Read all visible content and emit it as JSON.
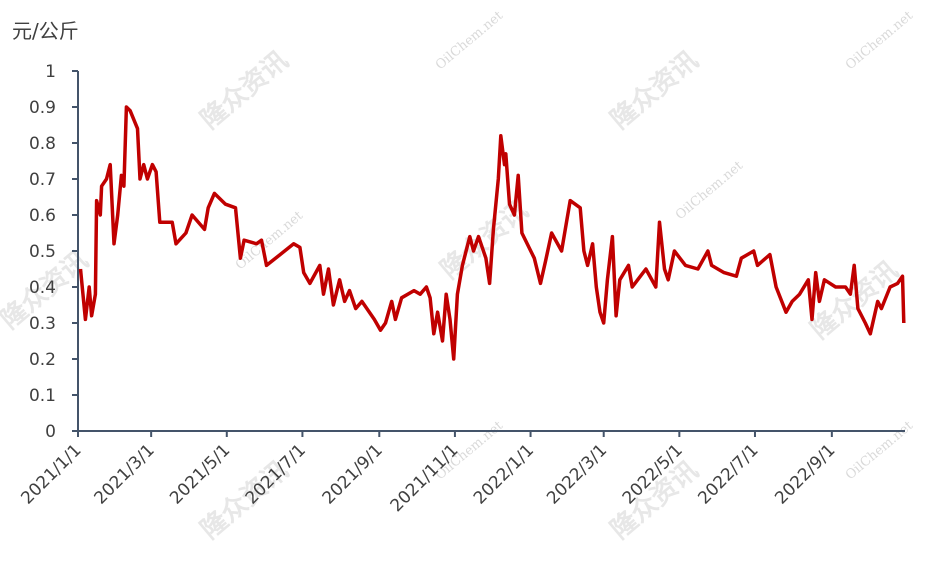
{
  "chart_data": {
    "type": "line",
    "y_label": "元/公斤",
    "watermarks": [
      "隆众资讯",
      "OilChem.net"
    ],
    "ylim": [
      0,
      1
    ],
    "yticks": [
      0,
      0.1,
      0.2,
      0.3,
      0.4,
      0.5,
      0.6,
      0.7,
      0.8,
      0.9,
      1
    ],
    "xlim": [
      "2021/1/1",
      "2022/10/30"
    ],
    "xticks": [
      "2021/1/1",
      "2021/3/1",
      "2021/5/1",
      "2021/7/1",
      "2021/9/1",
      "2021/11/1",
      "2022/1/1",
      "2022/3/1",
      "2022/5/1",
      "2022/7/1",
      "2022/9/1"
    ],
    "x": [
      "2021/1/3",
      "2021/1/7",
      "2021/1/10",
      "2021/1/12",
      "2021/1/15",
      "2021/1/16",
      "2021/1/19",
      "2021/1/20",
      "2021/1/24",
      "2021/1/27",
      "2021/1/30",
      "2021/2/2",
      "2021/2/5",
      "2021/2/7",
      "2021/2/9",
      "2021/2/12",
      "2021/2/18",
      "2021/2/20",
      "2021/2/23",
      "2021/2/26",
      "2021/3/2",
      "2021/3/5",
      "2021/3/8",
      "2021/3/18",
      "2021/3/21",
      "2021/3/29",
      "2021/4/3",
      "2021/4/13",
      "2021/4/16",
      "2021/4/21",
      "2021/4/30",
      "2021/5/8",
      "2021/5/12",
      "2021/5/15",
      "2021/5/25",
      "2021/5/29",
      "2021/6/2",
      "2021/6/13",
      "2021/6/24",
      "2021/6/29",
      "2021/7/2",
      "2021/7/7",
      "2021/7/15",
      "2021/7/18",
      "2021/7/22",
      "2021/7/26",
      "2021/7/31",
      "2021/8/4",
      "2021/8/8",
      "2021/8/13",
      "2021/8/18",
      "2021/8/28",
      "2021/9/2",
      "2021/9/6",
      "2021/9/11",
      "2021/9/14",
      "2021/9/19",
      "2021/9/29",
      "2021/10/4",
      "2021/10/9",
      "2021/10/12",
      "2021/10/15",
      "2021/10/18",
      "2021/10/22",
      "2021/10/25",
      "2021/10/28",
      "2021/10/31",
      "2021/11/3",
      "2021/11/7",
      "2021/11/13",
      "2021/11/16",
      "2021/11/20",
      "2021/11/26",
      "2021/11/29",
      "2021/12/2",
      "2021/12/6",
      "2021/12/8",
      "2021/12/11",
      "2021/12/12",
      "2021/12/15",
      "2021/12/19",
      "2021/12/22",
      "2021/12/25",
      "2022/1/4",
      "2022/1/9",
      "2022/1/13",
      "2022/1/18",
      "2022/1/26",
      "2022/1/30",
      "2022/2/2",
      "2022/2/10",
      "2022/2/13",
      "2022/2/16",
      "2022/2/20",
      "2022/2/23",
      "2022/2/26",
      "2022/3/1",
      "2022/3/4",
      "2022/3/8",
      "2022/3/11",
      "2022/3/14",
      "2022/3/21",
      "2022/3/24",
      "2022/4/4",
      "2022/4/12",
      "2022/4/15",
      "2022/4/19",
      "2022/4/22",
      "2022/4/27",
      "2022/5/6",
      "2022/5/16",
      "2022/5/24",
      "2022/5/27",
      "2022/6/6",
      "2022/6/16",
      "2022/6/20",
      "2022/6/30",
      "2022/7/3",
      "2022/7/13",
      "2022/7/18",
      "2022/7/26",
      "2022/7/31",
      "2022/8/6",
      "2022/8/13",
      "2022/8/16",
      "2022/8/19",
      "2022/8/22",
      "2022/8/26",
      "2022/9/4",
      "2022/9/12",
      "2022/9/16",
      "2022/9/19",
      "2022/9/22",
      "2022/9/28",
      "2022/10/2",
      "2022/10/8",
      "2022/10/11",
      "2022/10/18",
      "2022/10/24",
      "2022/10/28",
      "2022/10/29"
    ],
    "series": [
      {
        "color": "#c00000",
        "values": [
          0.45,
          0.31,
          0.4,
          0.32,
          0.38,
          0.64,
          0.6,
          0.68,
          0.7,
          0.74,
          0.52,
          0.6,
          0.71,
          0.68,
          0.9,
          0.89,
          0.84,
          0.7,
          0.74,
          0.7,
          0.74,
          0.72,
          0.58,
          0.58,
          0.52,
          0.55,
          0.6,
          0.56,
          0.62,
          0.66,
          0.63,
          0.62,
          0.48,
          0.53,
          0.52,
          0.53,
          0.46,
          0.49,
          0.52,
          0.51,
          0.44,
          0.41,
          0.46,
          0.38,
          0.45,
          0.35,
          0.42,
          0.36,
          0.39,
          0.34,
          0.36,
          0.31,
          0.28,
          0.3,
          0.36,
          0.31,
          0.37,
          0.39,
          0.38,
          0.4,
          0.37,
          0.27,
          0.33,
          0.25,
          0.38,
          0.31,
          0.2,
          0.38,
          0.46,
          0.54,
          0.5,
          0.54,
          0.48,
          0.41,
          0.56,
          0.7,
          0.82,
          0.74,
          0.77,
          0.63,
          0.6,
          0.71,
          0.55,
          0.48,
          0.41,
          0.47,
          0.55,
          0.5,
          0.58,
          0.64,
          0.62,
          0.5,
          0.46,
          0.52,
          0.4,
          0.33,
          0.3,
          0.42,
          0.54,
          0.32,
          0.42,
          0.46,
          0.4,
          0.45,
          0.4,
          0.58,
          0.45,
          0.42,
          0.5,
          0.46,
          0.45,
          0.5,
          0.46,
          0.44,
          0.43,
          0.48,
          0.5,
          0.46,
          0.49,
          0.4,
          0.33,
          0.36,
          0.38,
          0.42,
          0.31,
          0.44,
          0.36,
          0.42,
          0.4,
          0.4,
          0.38,
          0.46,
          0.34,
          0.3,
          0.27,
          0.36,
          0.34,
          0.4,
          0.41,
          0.43,
          0.3
        ]
      }
    ]
  }
}
